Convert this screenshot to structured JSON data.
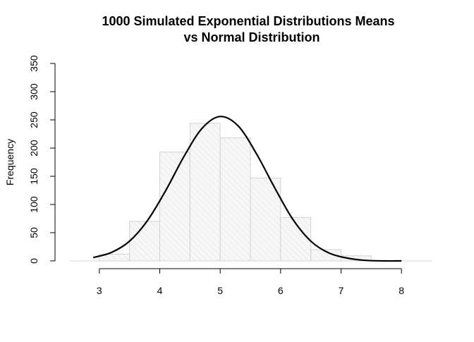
{
  "chart_data": {
    "type": "bar",
    "title": "1000 Simulated Exponential Distributions Means",
    "subtitle": "vs Normal Distribution",
    "xlabel": "",
    "ylabel": "Frequency",
    "bin_edges": [
      3.0,
      3.5,
      4.0,
      4.5,
      5.0,
      5.5,
      6.0,
      6.5,
      7.0,
      7.5
    ],
    "values": [
      12,
      70,
      193,
      244,
      218,
      147,
      77,
      20,
      9
    ],
    "xlim": [
      2.5,
      8.5
    ],
    "ylim": [
      0,
      350
    ],
    "x_ticks": [
      3,
      4,
      5,
      6,
      7,
      8
    ],
    "y_ticks": [
      0,
      50,
      100,
      150,
      200,
      250,
      300,
      350
    ],
    "grid": false,
    "bar_fill": "#f3f3f3",
    "bar_stroke": "#d3d3d3",
    "curve_color": "#000000",
    "normal_curve": {
      "x": [
        2.9,
        3.2,
        3.5,
        3.8,
        4.1,
        4.4,
        4.7,
        5.0,
        5.3,
        5.6,
        5.9,
        6.2,
        6.5,
        6.8,
        7.1,
        7.4,
        7.7,
        8.0
      ],
      "y": [
        6,
        15,
        35,
        72,
        125,
        185,
        235,
        256,
        239,
        190,
        130,
        74,
        35,
        14,
        5,
        1,
        0,
        0
      ]
    }
  }
}
